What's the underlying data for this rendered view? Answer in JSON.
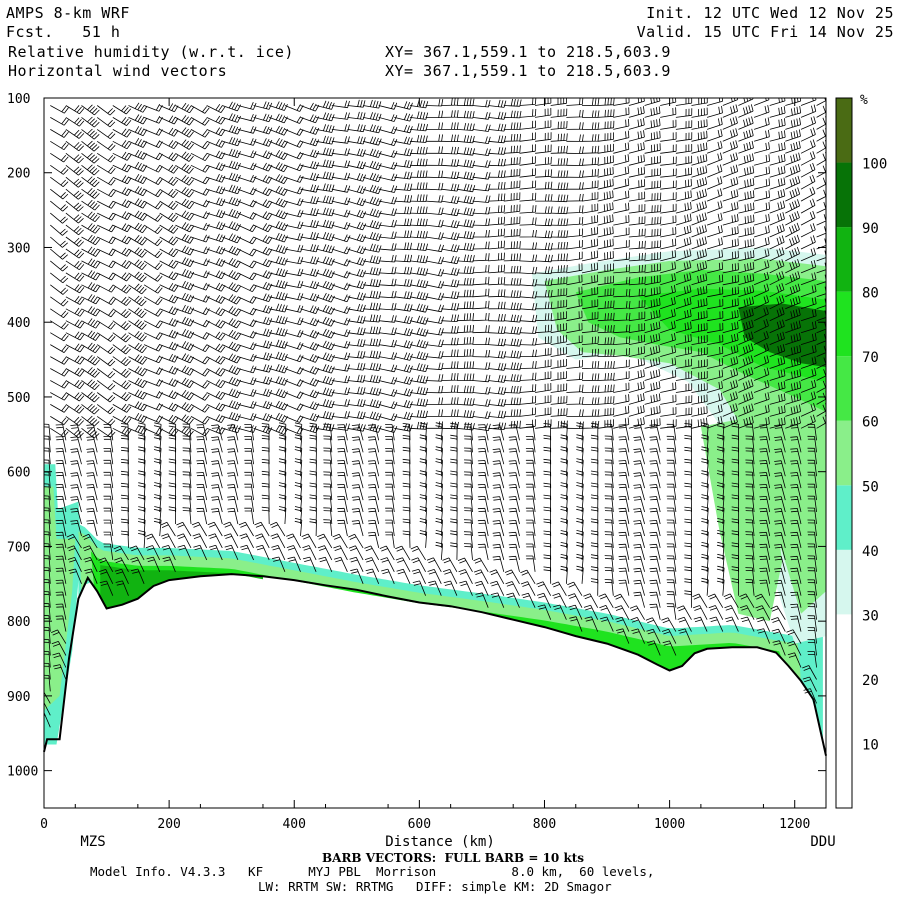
{
  "header": {
    "model": "AMPS 8-km WRF",
    "fcst": "Fcst.   51 h",
    "field1": "Relative humidity (w.r.t. ice)",
    "field2": "Horizontal wind vectors",
    "xy1": "XY= 367.1,559.1 to 218.5,603.9",
    "xy2": "XY= 367.1,559.1 to 218.5,603.9",
    "init": "Init. 12 UTC Wed 12 Nov 25",
    "valid": "Valid. 15 UTC Fri 14 Nov 25"
  },
  "footer": {
    "barb_note": "BARB VECTORS:  FULL BARB = 10 kts",
    "model_info": "Model Info. V4.3.3   KF      MYJ PBL  Morrison          8.0 km,  60 levels,",
    "physics": "LW: RRTM SW: RRTMG   DIFF: simple KM: 2D Smagor"
  },
  "chart_data": {
    "type": "heatmap",
    "title": "Relative humidity (w.r.t. ice)",
    "xlabel": "Distance (km)",
    "ylabel": "",
    "xlim": [
      0,
      1250
    ],
    "ylim": [
      1050,
      100
    ],
    "x_ticks": [
      0,
      200,
      400,
      600,
      800,
      1000,
      1200
    ],
    "y_ticks": [
      100,
      200,
      300,
      400,
      500,
      600,
      700,
      800,
      900,
      1000
    ],
    "endpoints": {
      "left": "MZS",
      "right": "DDU"
    },
    "colorbar": {
      "unit": "%",
      "levels": [
        10,
        20,
        30,
        40,
        50,
        60,
        70,
        80,
        90,
        100
      ],
      "colors": [
        "#ffffff",
        "#ffffff",
        "#ffffff",
        "#d6f7ee",
        "#5fefc9",
        "#8aef8a",
        "#45e845",
        "#1fe31f",
        "#11b311",
        "#077307",
        "#4a6b14"
      ]
    },
    "terrain": [
      [
        0,
        975
      ],
      [
        5,
        958
      ],
      [
        25,
        958
      ],
      [
        40,
        850
      ],
      [
        55,
        770
      ],
      [
        70,
        742
      ],
      [
        85,
        760
      ],
      [
        100,
        783
      ],
      [
        125,
        778
      ],
      [
        150,
        770
      ],
      [
        175,
        753
      ],
      [
        200,
        745
      ],
      [
        250,
        740
      ],
      [
        300,
        737
      ],
      [
        350,
        740
      ],
      [
        400,
        745
      ],
      [
        450,
        752
      ],
      [
        500,
        758
      ],
      [
        550,
        767
      ],
      [
        600,
        775
      ],
      [
        650,
        780
      ],
      [
        700,
        788
      ],
      [
        750,
        798
      ],
      [
        800,
        808
      ],
      [
        850,
        820
      ],
      [
        900,
        830
      ],
      [
        950,
        845
      ],
      [
        980,
        858
      ],
      [
        1000,
        866
      ],
      [
        1020,
        860
      ],
      [
        1040,
        843
      ],
      [
        1060,
        837
      ],
      [
        1100,
        835
      ],
      [
        1140,
        835
      ],
      [
        1170,
        842
      ],
      [
        1190,
        860
      ],
      [
        1210,
        880
      ],
      [
        1230,
        905
      ],
      [
        1242,
        950
      ],
      [
        1250,
        980
      ]
    ],
    "moist_layer": {
      "band_top": [
        [
          60,
          680
        ],
        [
          90,
          705
        ],
        [
          150,
          712
        ],
        [
          200,
          712
        ],
        [
          300,
          716
        ],
        [
          400,
          732
        ],
        [
          500,
          748
        ],
        [
          600,
          762
        ],
        [
          700,
          773
        ],
        [
          800,
          785
        ],
        [
          900,
          800
        ],
        [
          1000,
          820
        ],
        [
          1100,
          815
        ],
        [
          1200,
          830
        ]
      ],
      "peak_rh": 80
    },
    "upper_moist_region": {
      "x_range": [
        800,
        1250
      ],
      "p_range": [
        330,
        620
      ],
      "peak_rh": 90
    },
    "left_moist_column": {
      "x_range": [
        0,
        60
      ],
      "p_range": [
        590,
        960
      ],
      "peak_rh": 50
    },
    "wind_barb_columns_km": [
      10,
      35,
      60,
      85,
      110,
      135,
      160,
      185,
      210,
      235,
      260,
      285,
      310,
      335,
      360,
      385,
      410,
      435,
      460,
      485,
      510,
      535,
      560,
      585,
      610,
      635,
      660,
      685,
      710,
      735,
      760,
      785,
      810,
      835,
      860,
      885,
      910,
      935,
      960,
      985,
      1010,
      1035,
      1060,
      1085,
      1110,
      1135,
      1160,
      1185,
      1210,
      1235
    ]
  }
}
